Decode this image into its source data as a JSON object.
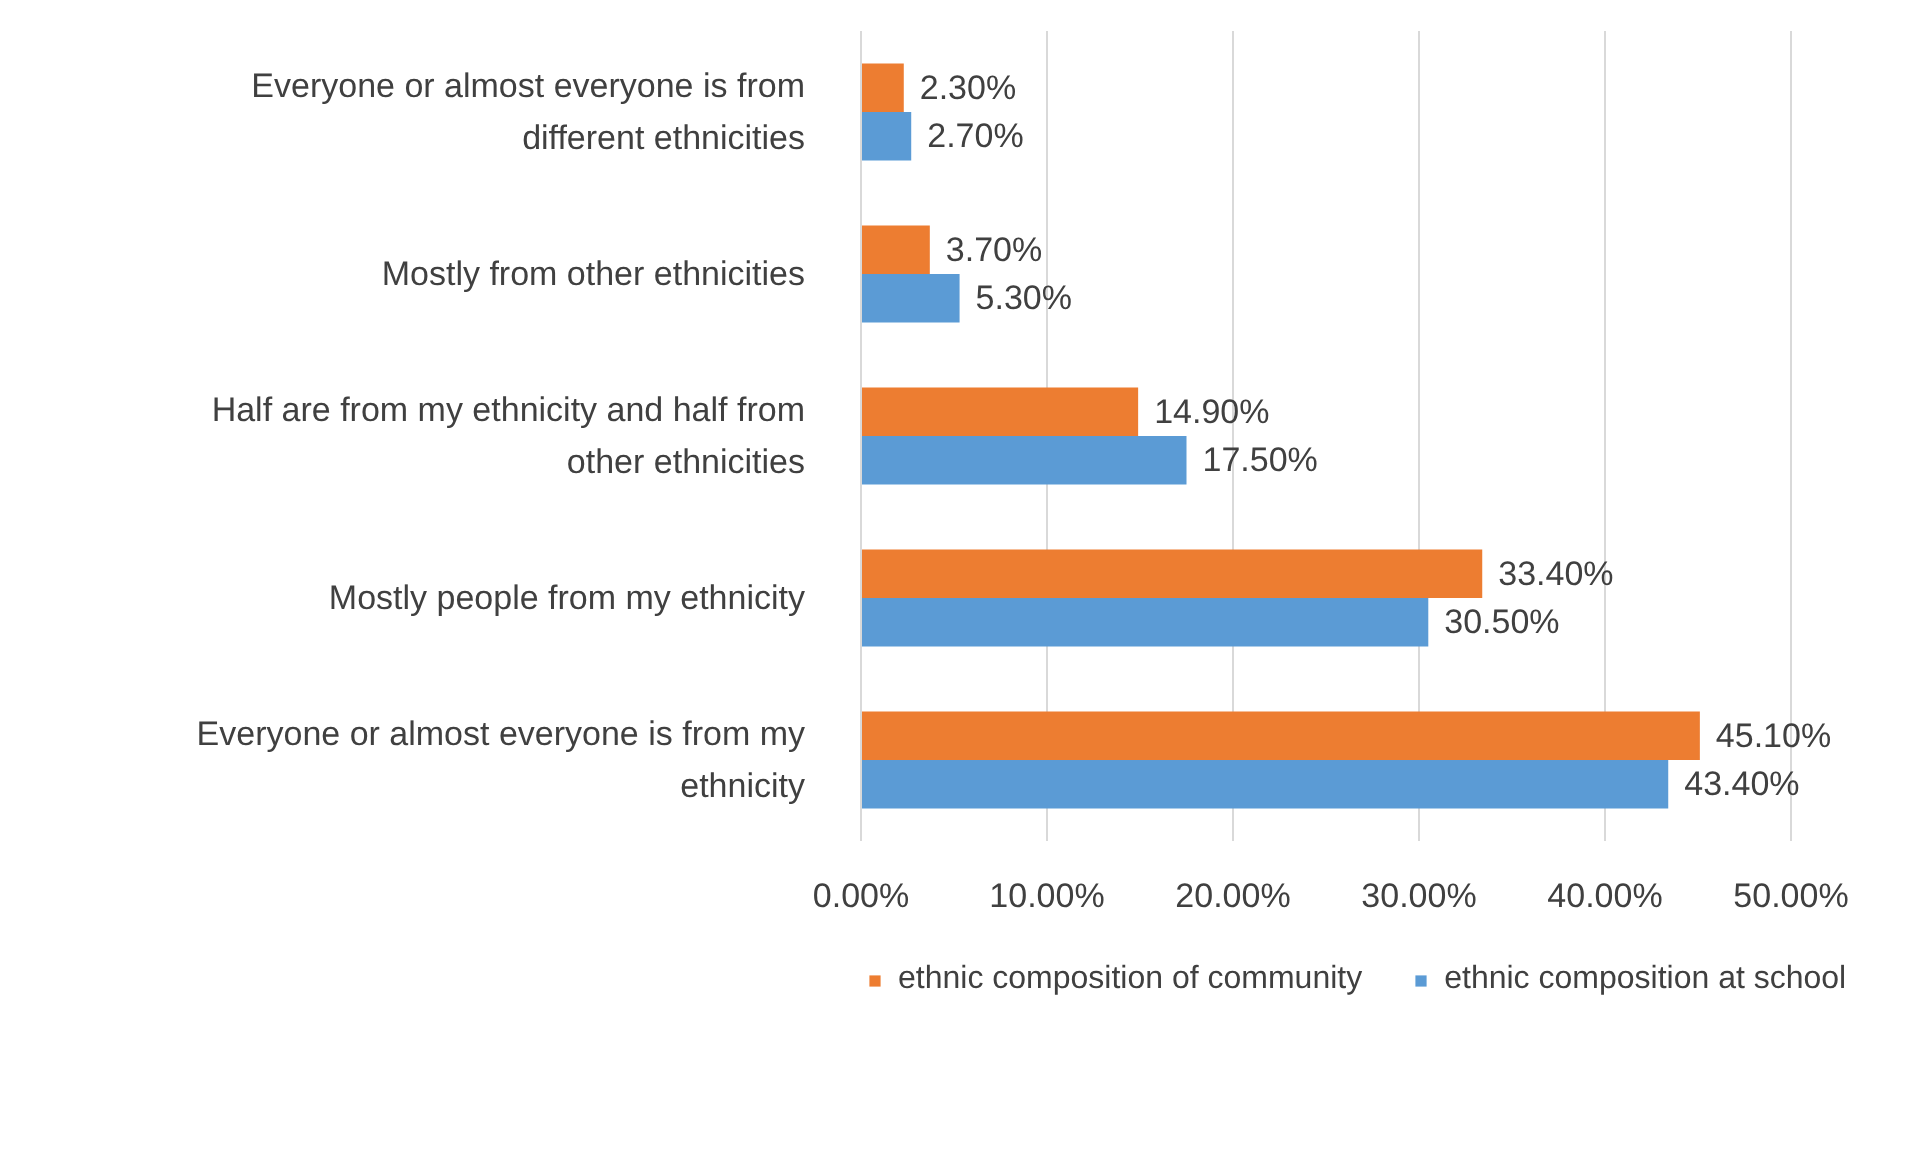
{
  "chart_data": {
    "type": "bar",
    "orientation": "horizontal",
    "categories": [
      "Everyone or almost everyone is from different ethnicities",
      "Mostly from other ethnicities",
      "Half are from my ethnicity and half from other ethnicities",
      "Mostly people from my ethnicity",
      "Everyone or almost everyone is from my ethnicity"
    ],
    "series": [
      {
        "name": "ethnic composition of community",
        "color": "#ed7d31",
        "values": [
          2.3,
          3.7,
          14.9,
          33.4,
          45.1
        ],
        "value_labels": [
          "2.30%",
          "3.70%",
          "14.90%",
          "33.40%",
          "45.10%"
        ]
      },
      {
        "name": "ethnic composition at school",
        "color": "#5b9bd5",
        "values": [
          2.7,
          5.3,
          17.5,
          30.5,
          43.4
        ],
        "value_labels": [
          "2.70%",
          "5.30%",
          "17.50%",
          "30.50%",
          "43.40%"
        ]
      }
    ],
    "xlim": [
      0,
      50
    ],
    "xticks": [
      {
        "value": 0,
        "label": "0.00%"
      },
      {
        "value": 10,
        "label": "10.00%"
      },
      {
        "value": 20,
        "label": "20.00%"
      },
      {
        "value": 30,
        "label": "30.00%"
      },
      {
        "value": 40,
        "label": "40.00%"
      },
      {
        "value": 50,
        "label": "50.00%"
      }
    ],
    "grid": "x",
    "legend": "bottom"
  }
}
